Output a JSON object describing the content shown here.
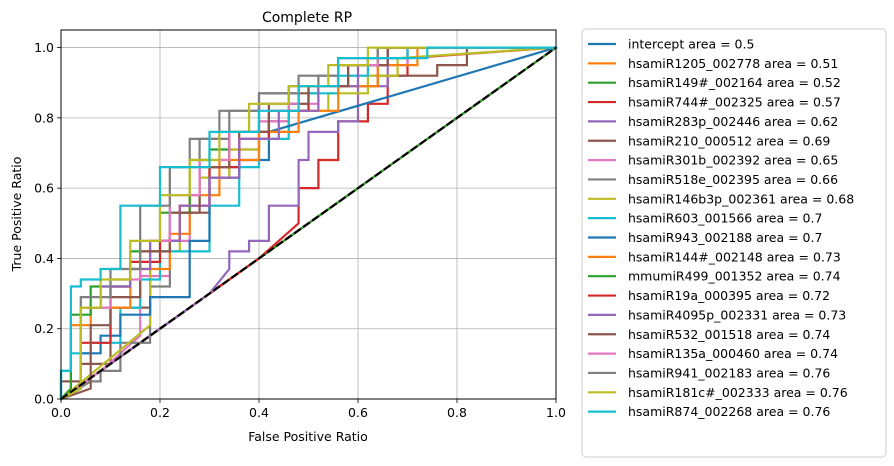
{
  "chart_data": {
    "type": "line",
    "title": "Complete RP",
    "xlabel": "False Positive Ratio",
    "ylabel": "True Positive Ratio",
    "xlim": [
      0.0,
      1.0
    ],
    "ylim": [
      0.0,
      1.05
    ],
    "x_ticks": [
      "0.0",
      "0.2",
      "0.4",
      "0.6",
      "0.8",
      "1.0"
    ],
    "y_ticks": [
      "0.0",
      "0.2",
      "0.4",
      "0.6",
      "0.8",
      "1.0"
    ],
    "grid": true,
    "legend_position": "outside-right",
    "diagonal": {
      "color": "#000000",
      "style": "dashed",
      "x": [
        0,
        1
      ],
      "y": [
        0,
        1
      ]
    },
    "series": [
      {
        "name": "intercept area = 0.5",
        "color": "#1f77b4",
        "x": [
          0,
          1
        ],
        "y": [
          0,
          1
        ]
      },
      {
        "name": "hsamiR1205_002778 area = 0.51",
        "color": "#ff7f0e",
        "x": [
          0,
          1
        ],
        "y": [
          0,
          1
        ]
      },
      {
        "name": "hsamiR149#_002164 area = 0.52",
        "color": "#2ca02c",
        "x": [
          0,
          1
        ],
        "y": [
          0,
          1
        ]
      },
      {
        "name": "hsamiR744#_002325 area = 0.57",
        "color": "#d62728",
        "x": [
          0,
          0.2,
          0.4,
          0.48,
          0.48,
          0.52,
          0.52,
          0.56,
          0.56,
          0.62,
          0.62,
          0.66,
          0.66,
          0.7,
          0.7,
          1.0
        ],
        "y": [
          0,
          0.2,
          0.4,
          0.5,
          0.6,
          0.6,
          0.68,
          0.68,
          0.79,
          0.79,
          0.84,
          0.84,
          0.92,
          0.92,
          0.97,
          1.0
        ]
      },
      {
        "name": "hsamiR283p_002446 area = 0.62",
        "color": "#9467bd",
        "x": [
          0,
          0.1,
          0.2,
          0.26,
          0.3,
          0.34,
          0.34,
          0.38,
          0.38,
          0.42,
          0.42,
          0.48,
          0.48,
          0.5,
          0.5,
          0.56,
          0.56,
          0.6,
          0.6,
          0.66,
          0.66,
          1.0
        ],
        "y": [
          0,
          0.1,
          0.2,
          0.26,
          0.3,
          0.37,
          0.42,
          0.42,
          0.45,
          0.45,
          0.55,
          0.55,
          0.68,
          0.68,
          0.76,
          0.76,
          0.79,
          0.79,
          0.89,
          0.89,
          1.0,
          1.0
        ]
      },
      {
        "name": "hsamiR210_000512 area = 0.69",
        "color": "#8c564b",
        "x": [
          0,
          0,
          0.04,
          0.04,
          0.1,
          0.1,
          0.18,
          0.18,
          0.24,
          0.24,
          0.3,
          0.3,
          0.36,
          0.36,
          0.42,
          0.42,
          0.46,
          0.46,
          0.52,
          0.52,
          0.64,
          0.64,
          0.76,
          0.76,
          0.82,
          0.82,
          1.0
        ],
        "y": [
          0,
          0.05,
          0.05,
          0.1,
          0.1,
          0.26,
          0.26,
          0.45,
          0.45,
          0.53,
          0.53,
          0.66,
          0.66,
          0.76,
          0.76,
          0.79,
          0.79,
          0.87,
          0.87,
          0.89,
          0.89,
          0.92,
          0.92,
          0.95,
          0.95,
          1.0,
          1.0
        ]
      },
      {
        "name": "hsamiR301b_002392 area = 0.65",
        "color": "#e377c2",
        "x": [
          0,
          0.04,
          0.08,
          0.12,
          0.16,
          0.16,
          0.22,
          0.22,
          0.26,
          0.26,
          0.3,
          0.3,
          0.34,
          0.34,
          0.4,
          0.4,
          0.46,
          0.46,
          0.52,
          0.52,
          0.58,
          0.58,
          0.64,
          0.64,
          0.7,
          0.7,
          1.0
        ],
        "y": [
          0,
          0.04,
          0.08,
          0.13,
          0.18,
          0.35,
          0.35,
          0.45,
          0.45,
          0.55,
          0.55,
          0.63,
          0.63,
          0.71,
          0.71,
          0.79,
          0.79,
          0.84,
          0.84,
          0.89,
          0.89,
          0.92,
          0.92,
          0.95,
          0.95,
          1.0,
          1.0
        ]
      },
      {
        "name": "hsamiR518e_002395 area = 0.66",
        "color": "#7f7f7f",
        "x": [
          0,
          0.06,
          0.08,
          0.08,
          0.12,
          0.12,
          0.18,
          0.18,
          0.22,
          0.22,
          0.28,
          0.28,
          0.34,
          0.34,
          0.4,
          0.4,
          0.46,
          0.46,
          0.52,
          0.52,
          0.56,
          0.56,
          0.62,
          0.62,
          0.7,
          0.7,
          0.78,
          0.78,
          1.0
        ],
        "y": [
          0,
          0.05,
          0.05,
          0.08,
          0.08,
          0.16,
          0.16,
          0.32,
          0.32,
          0.66,
          0.66,
          0.74,
          0.74,
          0.82,
          0.82,
          0.87,
          0.87,
          0.89,
          0.89,
          0.92,
          0.92,
          0.95,
          0.95,
          0.97,
          0.97,
          1.0,
          1.0,
          1.0,
          1.0
        ]
      },
      {
        "name": "hsamiR146b3p_002361 area = 0.68",
        "color": "#bcbd22",
        "x": [
          0,
          0.18,
          0.18,
          0.24,
          0.24,
          0.28,
          0.28,
          0.34,
          0.34,
          0.4,
          0.4,
          0.46,
          0.46,
          0.54,
          0.54,
          0.62,
          0.62,
          0.68,
          0.68,
          1.0
        ],
        "y": [
          0,
          0.21,
          0.42,
          0.42,
          0.55,
          0.55,
          0.63,
          0.63,
          0.71,
          0.71,
          0.76,
          0.76,
          0.82,
          0.82,
          0.87,
          0.87,
          0.92,
          0.92,
          0.97,
          1.0
        ]
      },
      {
        "name": "hsamiR603_001566 area = 0.7",
        "color": "#17becf",
        "x": [
          0,
          0,
          0.02,
          0.02,
          0.06,
          0.06,
          0.12,
          0.12,
          0.16,
          0.16,
          0.2,
          0.2,
          0.3,
          0.3,
          0.36,
          0.36,
          0.4,
          0.4,
          0.46,
          0.46,
          0.5,
          0.5,
          0.56,
          0.56,
          0.62,
          0.62,
          0.7,
          0.7,
          1.0
        ],
        "y": [
          0,
          0.08,
          0.08,
          0.13,
          0.13,
          0.16,
          0.16,
          0.26,
          0.26,
          0.34,
          0.34,
          0.42,
          0.42,
          0.55,
          0.55,
          0.66,
          0.66,
          0.74,
          0.74,
          0.82,
          0.82,
          0.87,
          0.87,
          0.92,
          0.92,
          0.97,
          0.97,
          1.0,
          1.0
        ]
      },
      {
        "name": "hsamiR943_002188 area = 0.7",
        "color": "#1f77b4",
        "x": [
          0,
          0.04,
          0.04,
          0.08,
          0.08,
          0.12,
          0.12,
          0.18,
          0.18,
          0.26,
          0.26,
          0.3,
          0.3,
          0.36,
          0.36,
          0.42,
          0.42,
          1.0
        ],
        "y": [
          0,
          0.03,
          0.13,
          0.13,
          0.18,
          0.18,
          0.24,
          0.24,
          0.29,
          0.29,
          0.45,
          0.45,
          0.63,
          0.63,
          0.68,
          0.68,
          0.76,
          1.0
        ]
      },
      {
        "name": "hsamiR144#_002148 area = 0.73",
        "color": "#ff7f0e",
        "x": [
          0,
          0.02,
          0.02,
          0.06,
          0.06,
          0.14,
          0.14,
          0.22,
          0.22,
          0.26,
          0.26,
          0.32,
          0.32,
          0.4,
          0.4,
          0.48,
          0.48,
          0.56,
          0.56,
          0.64,
          0.64,
          0.72,
          0.72,
          1.0
        ],
        "y": [
          0,
          0.03,
          0.21,
          0.21,
          0.26,
          0.26,
          0.37,
          0.37,
          0.47,
          0.47,
          0.58,
          0.58,
          0.68,
          0.68,
          0.76,
          0.76,
          0.82,
          0.82,
          0.89,
          0.89,
          0.95,
          0.95,
          1.0,
          1.0
        ]
      },
      {
        "name": "mmumiR499_001352 area = 0.74",
        "color": "#2ca02c",
        "x": [
          0,
          0.02,
          0.02,
          0.06,
          0.06,
          0.14,
          0.14,
          0.2,
          0.2,
          0.26,
          0.26,
          0.3,
          0.3,
          0.34,
          0.34,
          0.4,
          0.4,
          0.48,
          0.48,
          0.56,
          0.56,
          0.64,
          0.64,
          1.0
        ],
        "y": [
          0,
          0.03,
          0.24,
          0.24,
          0.32,
          0.32,
          0.42,
          0.42,
          0.53,
          0.53,
          0.68,
          0.68,
          0.71,
          0.71,
          0.76,
          0.76,
          0.84,
          0.84,
          0.89,
          0.89,
          0.95,
          0.95,
          1.0,
          1.0
        ]
      },
      {
        "name": "hsamiR19a_000395 area = 0.72",
        "color": "#d62728",
        "x": [
          0,
          0.04,
          0.04,
          0.1,
          0.1,
          0.14,
          0.14,
          0.2,
          0.2,
          0.24,
          0.24,
          0.3,
          0.3,
          0.36,
          0.36,
          0.42,
          0.42,
          0.5,
          0.5,
          0.58,
          0.58,
          0.66,
          0.66,
          1.0
        ],
        "y": [
          0,
          0.03,
          0.16,
          0.16,
          0.32,
          0.32,
          0.39,
          0.39,
          0.45,
          0.45,
          0.55,
          0.55,
          0.66,
          0.66,
          0.74,
          0.74,
          0.82,
          0.82,
          0.89,
          0.89,
          0.95,
          0.95,
          1.0,
          1.0
        ]
      },
      {
        "name": "hsamiR4095p_002331 area = 0.73",
        "color": "#9467bd",
        "x": [
          0,
          0.04,
          0.04,
          0.08,
          0.08,
          0.14,
          0.14,
          0.18,
          0.18,
          0.24,
          0.24,
          0.3,
          0.3,
          0.36,
          0.36,
          0.44,
          0.44,
          0.52,
          0.52,
          0.6,
          0.6,
          0.66,
          0.66,
          1.0
        ],
        "y": [
          0,
          0.03,
          0.26,
          0.26,
          0.32,
          0.32,
          0.37,
          0.37,
          0.45,
          0.45,
          0.55,
          0.55,
          0.63,
          0.63,
          0.74,
          0.74,
          0.82,
          0.82,
          0.89,
          0.89,
          0.95,
          0.95,
          1.0,
          1.0
        ]
      },
      {
        "name": "hsamiR532_001518 area = 0.74",
        "color": "#8c564b",
        "x": [
          0,
          0.06,
          0.06,
          0.1,
          0.1,
          0.16,
          0.16,
          0.22,
          0.22,
          0.28,
          0.28,
          0.34,
          0.34,
          0.42,
          0.42,
          0.5,
          0.5,
          0.58,
          0.58,
          0.66,
          0.66,
          1.0
        ],
        "y": [
          0,
          0.03,
          0.21,
          0.21,
          0.29,
          0.29,
          0.42,
          0.42,
          0.53,
          0.53,
          0.66,
          0.66,
          0.76,
          0.76,
          0.84,
          0.84,
          0.89,
          0.89,
          0.95,
          0.95,
          1.0,
          1.0
        ]
      },
      {
        "name": "hsamiR135a_000460 area = 0.74",
        "color": "#e377c2",
        "x": [
          0,
          0.04,
          0.04,
          0.1,
          0.1,
          0.16,
          0.16,
          0.22,
          0.22,
          0.28,
          0.28,
          0.34,
          0.34,
          0.4,
          0.4,
          0.48,
          0.48,
          0.56,
          0.56,
          0.64,
          0.64,
          1.0
        ],
        "y": [
          0,
          0.03,
          0.26,
          0.26,
          0.34,
          0.34,
          0.45,
          0.45,
          0.58,
          0.58,
          0.68,
          0.68,
          0.76,
          0.76,
          0.84,
          0.84,
          0.89,
          0.89,
          0.95,
          0.95,
          1.0,
          1.0
        ]
      },
      {
        "name": "hsamiR941_002183 area = 0.76",
        "color": "#7f7f7f",
        "x": [
          0,
          0.04,
          0.04,
          0.1,
          0.1,
          0.16,
          0.16,
          0.22,
          0.22,
          0.26,
          0.26,
          0.32,
          0.32,
          0.4,
          0.4,
          0.48,
          0.48,
          0.56,
          0.56,
          0.64,
          0.64,
          1.0
        ],
        "y": [
          0,
          0.03,
          0.29,
          0.29,
          0.37,
          0.37,
          0.55,
          0.55,
          0.66,
          0.66,
          0.74,
          0.74,
          0.82,
          0.82,
          0.87,
          0.87,
          0.92,
          0.92,
          0.97,
          0.97,
          1.0,
          1.0
        ]
      },
      {
        "name": "hsamiR181c#_002333 area = 0.76",
        "color": "#bcbd22",
        "x": [
          0,
          0.04,
          0.04,
          0.08,
          0.08,
          0.14,
          0.14,
          0.2,
          0.2,
          0.26,
          0.26,
          0.32,
          0.32,
          0.38,
          0.38,
          0.46,
          0.46,
          0.54,
          0.54,
          0.62,
          0.62,
          1.0
        ],
        "y": [
          0,
          0.03,
          0.26,
          0.26,
          0.34,
          0.34,
          0.45,
          0.45,
          0.58,
          0.58,
          0.68,
          0.68,
          0.76,
          0.76,
          0.84,
          0.84,
          0.89,
          0.89,
          0.95,
          0.95,
          1.0,
          1.0
        ]
      },
      {
        "name": "hsamiR874_002268 area = 0.76",
        "color": "#17becf",
        "x": [
          0,
          0,
          0.02,
          0.02,
          0.04,
          0.04,
          0.08,
          0.08,
          0.12,
          0.12,
          0.2,
          0.2,
          0.3,
          0.3,
          0.4,
          0.4,
          0.48,
          0.48,
          0.56,
          0.56,
          0.74,
          0.74,
          1.0
        ],
        "y": [
          0,
          0.08,
          0.08,
          0.32,
          0.32,
          0.34,
          0.34,
          0.37,
          0.37,
          0.55,
          0.55,
          0.66,
          0.66,
          0.76,
          0.76,
          0.82,
          0.82,
          0.89,
          0.89,
          0.97,
          0.97,
          1.0,
          1.0
        ]
      }
    ]
  }
}
